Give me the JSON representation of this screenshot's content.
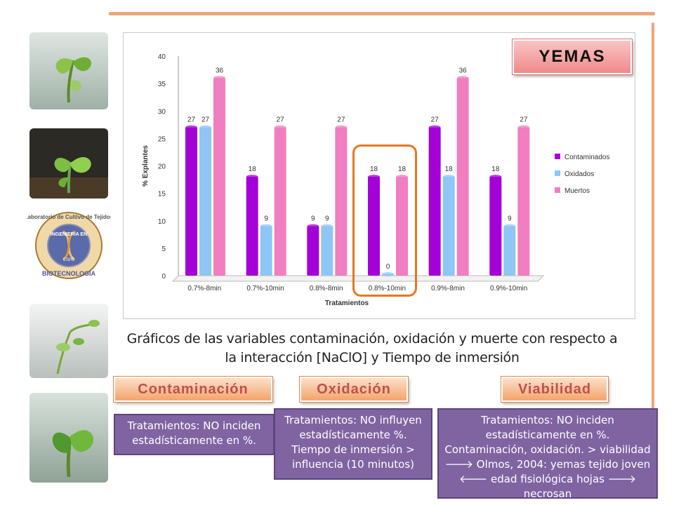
{
  "title_badge": "YEMAS",
  "caption_line1": "Gráficos de  las variables contaminación, oxidación y muerte con respecto a",
  "caption_line2": "la interacción [NaClO] y Tiempo de inmersión",
  "labels": {
    "contaminacion": "Contaminación",
    "oxidacion": "Oxidación",
    "viabilidad": "Viabilidad"
  },
  "notes": {
    "contaminacion": [
      "Tratamientos: NO inciden",
      "estadísticamente en %."
    ],
    "oxidacion": [
      "Tratamientos: NO influyen",
      "estadísticamente %.",
      "Tiempo de inmersión >",
      "influencia (10 minutos)"
    ],
    "viabilidad": [
      "Tratamientos: NO inciden",
      "estadísticamente en %.",
      "Contaminación, oxidación. > viabilidad",
      "🡒 Olmos, 2004: yemas tejido joven",
      "🡐 edad fisiológica hojas 🡒 necrosan"
    ]
  },
  "logo_text": {
    "ring": "Laboratorio de Cultivo de Tejidos",
    "center_top": "INGENIERÍA EN",
    "center_bottom": "BIOTECNOLOGÍA",
    "small": "ESPE"
  },
  "colors": {
    "contaminados": "#a400d8",
    "oxidados": "#8ec6f5",
    "muertos": "#f07ec0",
    "highlight": "#e87722",
    "note_bg": "#8064a2"
  },
  "chart_data": {
    "type": "bar",
    "title": "",
    "xlabel": "Tratamientos",
    "ylabel": "% Explantes",
    "ylim": [
      0,
      40
    ],
    "yticks": [
      0,
      5,
      10,
      15,
      20,
      25,
      30,
      35,
      40
    ],
    "categories": [
      "0.7%-8min",
      "0.7%-10min",
      "0.8%-8min",
      "0.8%-10min",
      "0.9%-8min",
      "0.9%-10min"
    ],
    "series": [
      {
        "name": "Contaminados",
        "values": [
          27,
          18,
          9,
          18,
          27,
          18
        ],
        "labels": [
          "27",
          "18",
          "9",
          "18",
          "27",
          "18"
        ]
      },
      {
        "name": "Oxidados",
        "values": [
          27,
          9,
          9,
          0,
          18,
          9
        ],
        "labels": [
          "27",
          "9",
          "9",
          "0",
          "18",
          "9"
        ]
      },
      {
        "name": "Muertos",
        "values": [
          36,
          27,
          27,
          18,
          36,
          27
        ],
        "labels": [
          "36",
          "27",
          "27",
          "18",
          "36",
          "27"
        ]
      }
    ],
    "legend_position": "right",
    "grid": false
  }
}
